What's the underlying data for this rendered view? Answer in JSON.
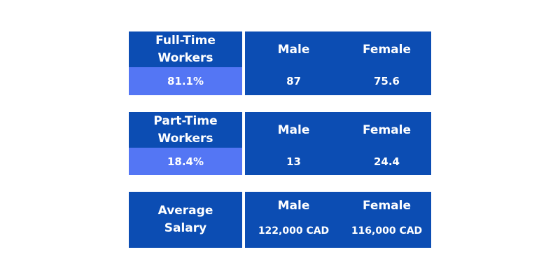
{
  "chart_data": {
    "type": "table",
    "tables": [
      {
        "title_line1": "Full-Time",
        "title_line2": "Workers",
        "total": "81.1%",
        "male_label": "Male",
        "female_label": "Female",
        "male_value": "87",
        "female_value": "75.6"
      },
      {
        "title_line1": "Part-Time",
        "title_line2": "Workers",
        "total": "18.4%",
        "male_label": "Male",
        "female_label": "Female",
        "male_value": "13",
        "female_value": "24.4"
      },
      {
        "title_line1": "Average",
        "title_line2": "Salary",
        "male_label": "Male",
        "female_label": "Female",
        "male_value": "122,000 CAD",
        "female_value": "116,000 CAD"
      }
    ]
  },
  "colors": {
    "header": "#0c4db3",
    "row": "#5476f4",
    "text": "#ffffff"
  }
}
